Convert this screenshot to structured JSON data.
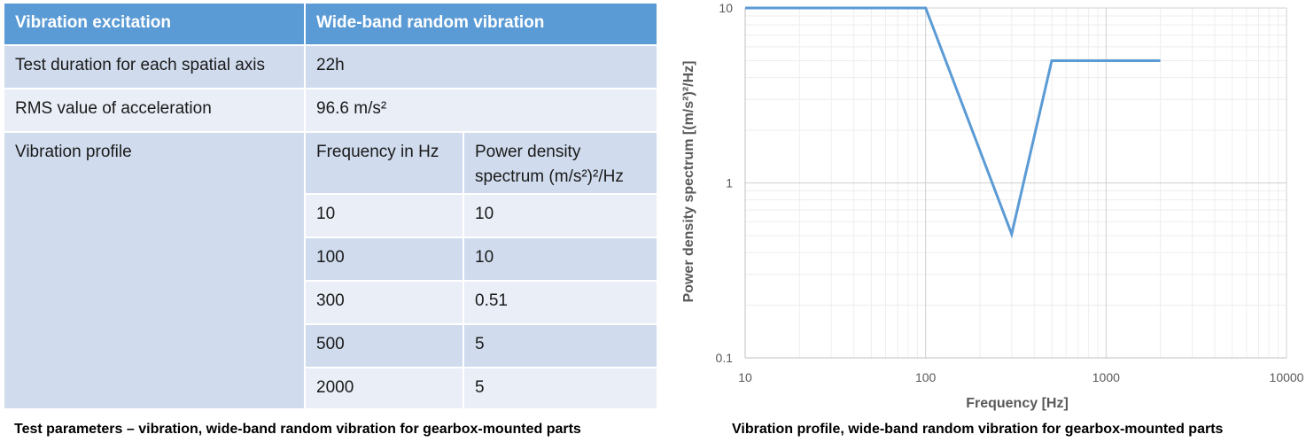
{
  "table": {
    "header": [
      "Vibration excitation",
      "Wide-band random vibration"
    ],
    "test_duration_label": "Test duration for each spatial axis",
    "test_duration_value": "22h",
    "rms_label": "RMS value of acceleration",
    "rms_value": "96.6 m/s²",
    "profile_label": "Vibration profile",
    "profile_col1": "Frequency in Hz",
    "profile_col2_line1": "Power density",
    "profile_col2_line2": "spectrum (m/s²)²/Hz",
    "profile_rows": [
      [
        "10",
        "10"
      ],
      [
        "100",
        "10"
      ],
      [
        "300",
        "0.51"
      ],
      [
        "500",
        "5"
      ],
      [
        "2000",
        "5"
      ]
    ]
  },
  "captions": {
    "left": "Test parameters – vibration, wide-band random vibration for gearbox-mounted parts",
    "right": "Vibration profile, wide-band random vibration for gearbox-mounted parts"
  },
  "chart_data": {
    "type": "line",
    "xscale": "log",
    "yscale": "log",
    "xlim": [
      10,
      10000
    ],
    "ylim": [
      0.1,
      10
    ],
    "x_ticks": [
      "10",
      "100",
      "1000",
      "10000"
    ],
    "y_ticks": [
      "0.1",
      "1",
      "10"
    ],
    "xlabel": "Frequency [Hz]",
    "ylabel": "Power density spectrum [(m/s²)²/Hz]",
    "grid": true,
    "series": [
      {
        "x": [
          10,
          100,
          300,
          500,
          2000
        ],
        "y": [
          10,
          10,
          0.51,
          5,
          5
        ]
      }
    ],
    "colors": {
      "line": "#5b9bd5",
      "major_grid": "#d0d0d0",
      "minor_grid": "#eeeeee",
      "axis": "#bfbfbf",
      "text": "#595959"
    }
  }
}
